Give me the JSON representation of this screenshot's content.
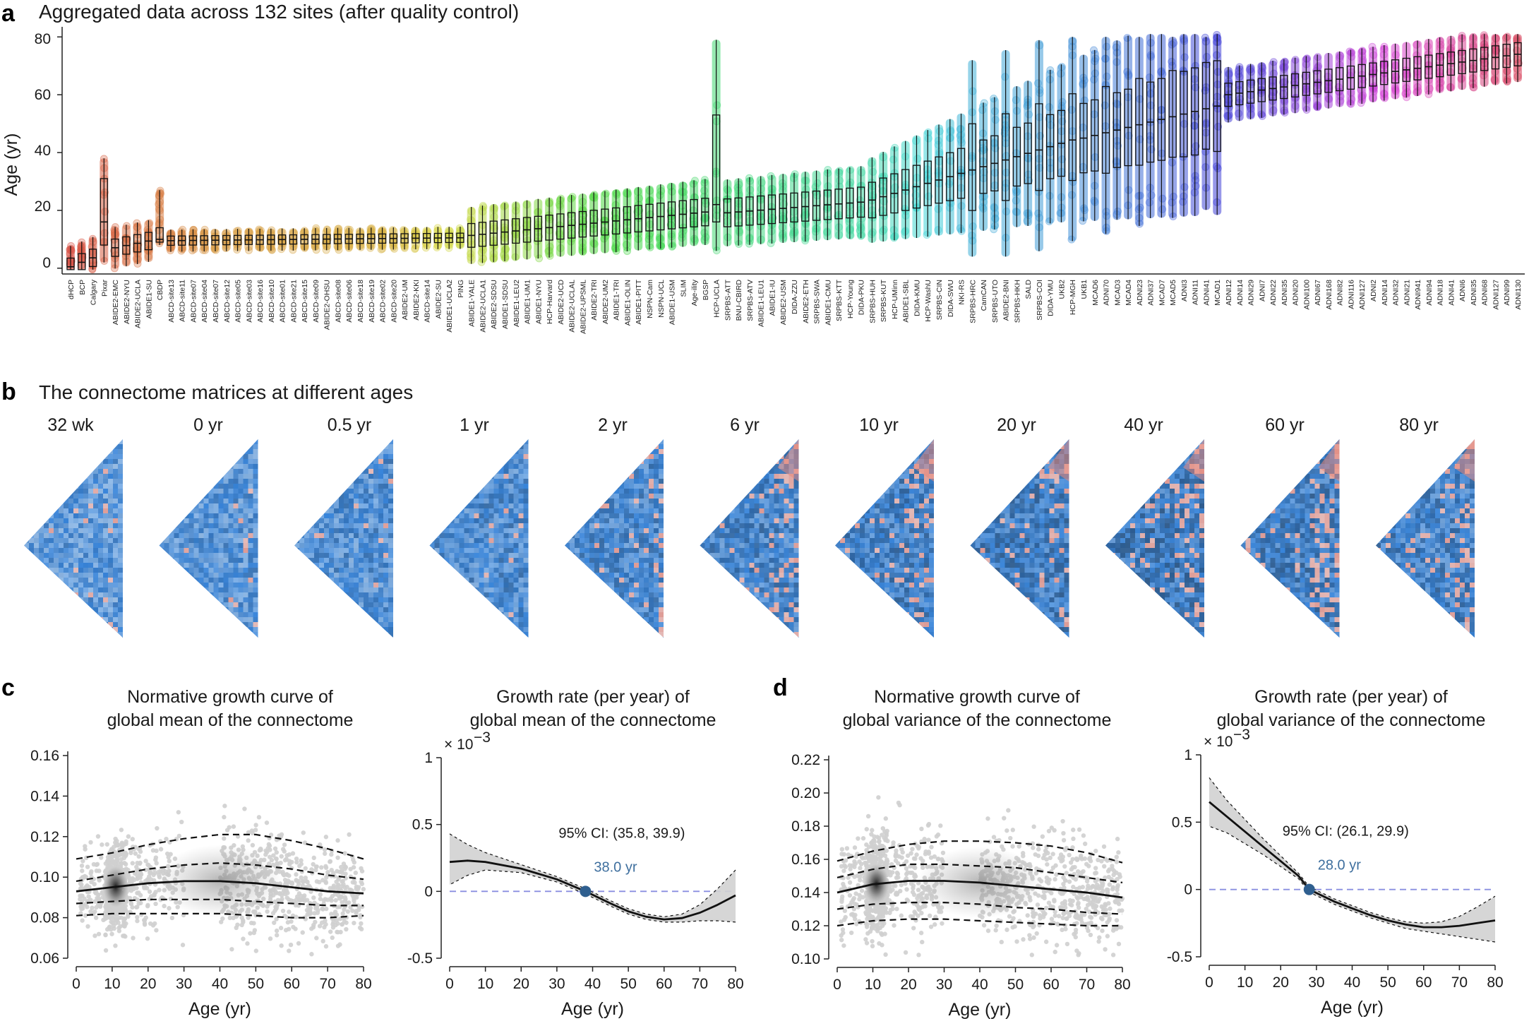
{
  "panel_a": {
    "label": "a",
    "title": "Aggregated data across 132 sites (after quality control)",
    "ylabel": "Age (yr)",
    "yticks": [
      "0",
      "20",
      "40",
      "60",
      "80"
    ]
  },
  "panel_b": {
    "label": "b",
    "title": "The connectome matrices at different ages",
    "ages": [
      "32 wk",
      "0 yr",
      "0.5 yr",
      "1 yr",
      "2 yr",
      "6 yr",
      "10 yr",
      "20 yr",
      "40 yr",
      "60 yr",
      "80 yr"
    ]
  },
  "panel_c": {
    "label": "c",
    "left_title": [
      "Normative growth curve of",
      "global mean of the connectome"
    ],
    "right_title": [
      "Growth rate (per year) of",
      "global mean of the connectome"
    ]
  },
  "panel_d": {
    "label": "d",
    "left_title": [
      "Normative growth curve of",
      "global variance of the connectome"
    ],
    "right_title": [
      "Growth rate (per year) of",
      "global variance of the connectome"
    ]
  },
  "common": {
    "xlabel": "Age (yr)",
    "xticks": [
      "0",
      "10",
      "20",
      "30",
      "40",
      "50",
      "60",
      "70",
      "80"
    ],
    "rate_multiplier": "× 10",
    "rate_exponent": "−3"
  },
  "colors": {
    "line_black": "#111111",
    "ci_blue": "#2f5f8f",
    "zero_line": "#8a8fe0",
    "scatter_grey": "#cfcfcf"
  },
  "chart_data": [
    {
      "type": "box",
      "title": "Aggregated data across 132 sites (after quality control)",
      "ylabel": "Age (yr)",
      "ylim": [
        -2,
        83
      ],
      "categories": [
        "dHCP",
        "BCP",
        "Calgary",
        "Pixar",
        "ABIDE2-EMC",
        "ABIDE2-NYU",
        "ABIDE2-UCLA",
        "ABIDE1-SU",
        "CBDP",
        "ABCD-site13",
        "ABCD-site11",
        "ABCD-site07",
        "ABCD-site04",
        "ABCD-site07",
        "ABCD-site12",
        "ABCD-site05",
        "ABCD-site03",
        "ABCD-site16",
        "ABCD-site10",
        "ABCD-site01",
        "ABCD-site21",
        "ABCD-site15",
        "ABCD-site09",
        "ABIDE2-OHSU",
        "ABCD-site08",
        "ABCD-site06",
        "ABCD-site18",
        "ABCD-site19",
        "ABCD-site02",
        "ABCD-site20",
        "ABIDE2-UM",
        "ABIDE2-KKI",
        "ABCD-site14",
        "ABIDE2-SU",
        "ABIDE1-UCLA2",
        "PING",
        "ABIDE1-YALE",
        "ABIDE2-UCLA1",
        "ABIDE2-SDSU",
        "ABIDE1-SDSU",
        "ABIDE1-LEU2",
        "ABIDE1-UM1",
        "ABIDE1-NYU",
        "HCP-Harvard",
        "ABIDE2-UCD",
        "ABIDE2-UCLAL",
        "ABIDE2-UPSML",
        "ABIDE2-TRI",
        "ABIDE2-UM2",
        "ABIDE1-TRI",
        "ABIDE1-OLIN",
        "ABIDE1-PITT",
        "NSPN-Cam",
        "NSPN-UCL",
        "ABIDE1-USM",
        "SLIM",
        "Age-ility",
        "BGSP",
        "HCP-UCLA",
        "SRPBS-ATT",
        "BNU-CBIRD",
        "SRPBS-ATV",
        "ABIDE1-LEU1",
        "ABIDE1-IU",
        "ABIDE2-USM",
        "DIDA-ZZU",
        "ABIDE2-ETH",
        "SRPBS-SWA",
        "ABIDE1-CMU",
        "SRPBS-KTT",
        "HCP-Young",
        "DIDA-PKU",
        "SRPBS-HUH",
        "SRPBS-KUT",
        "HCP-UMinn",
        "ABIDE1-SBL",
        "DIDA-KMU",
        "HCP-WashU",
        "SRPBS-CIN",
        "DIDA-SWU",
        "NKI-RS",
        "SRPBS-HRC",
        "CamCAN",
        "SRPBS-UTO",
        "ABIDE2-BNI",
        "SRPBS-HKH",
        "SALD",
        "SRPBS-COI",
        "DIDA-YMU",
        "UKB2",
        "HCP-MGH",
        "UKB1",
        "MCAD6",
        "ADNI70",
        "MCAD3",
        "MCAD4",
        "ADNI23",
        "ADNI37",
        "MCAD7",
        "MCAD5",
        "ADNI3",
        "ADNI11",
        "ADNI41",
        "MCAD1",
        "ADNI12",
        "ADNI14",
        "ADNI29",
        "ADNI7",
        "ADNI22",
        "ADNI35",
        "ADNI20",
        "ADNI100",
        "ADNI67",
        "ADNI168",
        "ADNI82",
        "ADNI116",
        "ADNI127",
        "ADNI2",
        "ADNI14",
        "ADNI32",
        "ADNI21",
        "ADNI941",
        "ADNI94",
        "ADNI18",
        "ADNI41",
        "ADNI6",
        "ADNI35",
        "ADNI68",
        "ADNI127",
        "ADNI99",
        "ADNI130"
      ]
    },
    {
      "type": "line",
      "title": "Normative growth curve of global mean of the connectome",
      "xlabel": "Age (yr)",
      "xlim": [
        0,
        80
      ],
      "ylim": [
        0.06,
        0.16
      ],
      "yticks": [
        0.06,
        0.08,
        0.1,
        0.12,
        0.14,
        0.16
      ],
      "x": [
        0,
        10,
        20,
        30,
        40,
        50,
        60,
        70,
        80
      ],
      "series": [
        {
          "values": [
            0.081,
            0.082,
            0.082,
            0.082,
            0.082,
            0.081,
            0.08,
            0.08,
            0.081
          ]
        },
        {
          "values": [
            0.087,
            0.088,
            0.089,
            0.089,
            0.089,
            0.088,
            0.087,
            0.086,
            0.086
          ]
        },
        {
          "values": [
            0.093,
            0.095,
            0.097,
            0.098,
            0.098,
            0.097,
            0.095,
            0.093,
            0.092
          ]
        },
        {
          "values": [
            0.098,
            0.101,
            0.104,
            0.106,
            0.107,
            0.106,
            0.104,
            0.101,
            0.099
          ]
        },
        {
          "values": [
            0.109,
            0.112,
            0.116,
            0.119,
            0.121,
            0.121,
            0.118,
            0.114,
            0.109
          ]
        }
      ]
    },
    {
      "type": "line",
      "title": "Growth rate (per year) of global mean of the connectome",
      "xlabel": "Age (yr)",
      "xlim": [
        0,
        80
      ],
      "ylim": [
        -0.5,
        1
      ],
      "yticks": [
        -0.5,
        0,
        0.5,
        1
      ],
      "x": [
        0,
        5,
        10,
        20,
        30,
        38,
        45,
        50,
        55,
        60,
        65,
        70,
        75,
        80
      ],
      "series": [
        {
          "values": [
            0.22,
            0.23,
            0.22,
            0.17,
            0.09,
            0.0,
            -0.09,
            -0.15,
            -0.19,
            -0.21,
            -0.2,
            -0.16,
            -0.1,
            -0.03
          ]
        }
      ],
      "lower": [
        0.05,
        0.12,
        0.16,
        0.14,
        0.07,
        -0.02,
        -0.11,
        -0.17,
        -0.21,
        -0.23,
        -0.23,
        -0.22,
        -0.22,
        -0.23
      ],
      "upper": [
        0.43,
        0.35,
        0.29,
        0.2,
        0.11,
        0.02,
        -0.07,
        -0.13,
        -0.17,
        -0.19,
        -0.17,
        -0.1,
        0.02,
        0.16
      ],
      "annotations": {
        "ci": "95% CI: (35.8, 39.9)",
        "zero_crossing": "38.0 yr",
        "zero_crossing_x": 38.0
      }
    },
    {
      "type": "line",
      "title": "Normative growth curve of global variance of the connectome",
      "xlabel": "Age (yr)",
      "xlim": [
        0,
        80
      ],
      "ylim": [
        0.1,
        0.22
      ],
      "yticks": [
        0.1,
        0.12,
        0.14,
        0.16,
        0.18,
        0.2,
        0.22
      ],
      "x": [
        0,
        10,
        20,
        30,
        40,
        50,
        60,
        70,
        80
      ],
      "series": [
        {
          "values": [
            0.12,
            0.123,
            0.124,
            0.124,
            0.123,
            0.122,
            0.121,
            0.12,
            0.12
          ]
        },
        {
          "values": [
            0.13,
            0.133,
            0.134,
            0.134,
            0.133,
            0.131,
            0.13,
            0.128,
            0.127
          ]
        },
        {
          "values": [
            0.14,
            0.145,
            0.147,
            0.147,
            0.146,
            0.144,
            0.142,
            0.14,
            0.137
          ]
        },
        {
          "values": [
            0.149,
            0.154,
            0.157,
            0.157,
            0.156,
            0.155,
            0.152,
            0.149,
            0.146
          ]
        },
        {
          "values": [
            0.159,
            0.165,
            0.169,
            0.171,
            0.171,
            0.17,
            0.168,
            0.164,
            0.158
          ]
        }
      ]
    },
    {
      "type": "line",
      "title": "Growth rate (per year) of global variance of the connectome",
      "xlabel": "Age (yr)",
      "xlim": [
        0,
        80
      ],
      "ylim": [
        -0.5,
        1
      ],
      "yticks": [
        -0.5,
        0,
        0.5,
        1
      ],
      "x": [
        0,
        5,
        10,
        15,
        20,
        25,
        28,
        35,
        40,
        45,
        50,
        55,
        60,
        65,
        70,
        75,
        80
      ],
      "series": [
        {
          "values": [
            0.65,
            0.54,
            0.43,
            0.32,
            0.21,
            0.1,
            0.0,
            -0.09,
            -0.14,
            -0.19,
            -0.23,
            -0.26,
            -0.28,
            -0.28,
            -0.27,
            -0.25,
            -0.23
          ]
        }
      ],
      "lower": [
        0.47,
        0.42,
        0.34,
        0.26,
        0.17,
        0.08,
        -0.02,
        -0.11,
        -0.16,
        -0.21,
        -0.25,
        -0.29,
        -0.31,
        -0.33,
        -0.35,
        -0.37,
        -0.39
      ],
      "upper": [
        0.83,
        0.66,
        0.52,
        0.38,
        0.25,
        0.12,
        0.02,
        -0.07,
        -0.12,
        -0.17,
        -0.21,
        -0.24,
        -0.25,
        -0.24,
        -0.2,
        -0.13,
        -0.05
      ],
      "annotations": {
        "ci": "95% CI: (26.1, 29.9)",
        "zero_crossing": "28.0 yr",
        "zero_crossing_x": 28.0
      }
    }
  ]
}
